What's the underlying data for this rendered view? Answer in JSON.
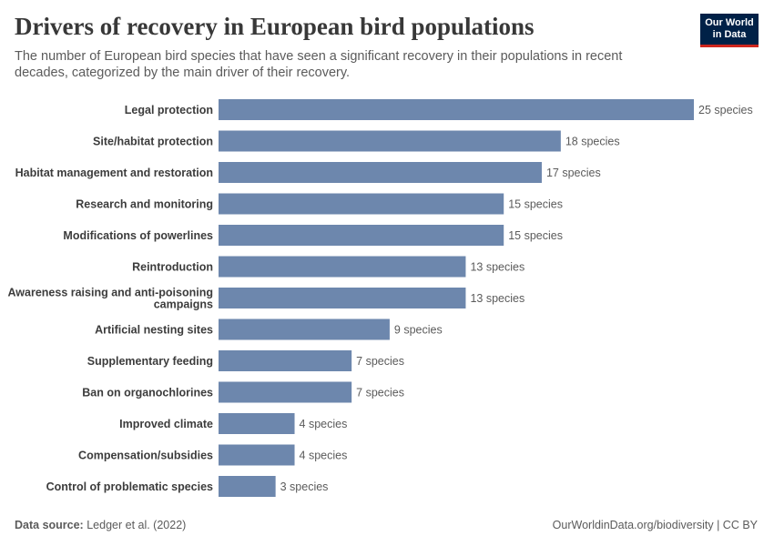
{
  "header": {
    "title": "Drivers of recovery in European bird populations",
    "subtitle": "The number of European bird species that have seen a significant recovery in their populations in recent decades, categorized by the main driver of their recovery."
  },
  "logo": {
    "line1": "Our World",
    "line2": "in Data"
  },
  "footer": {
    "source_label": "Data source:",
    "source_value": "Ledger et al. (2022)",
    "url_license": "OurWorldinData.org/biodiversity | CC BY"
  },
  "colors": {
    "bar": "#6d87ad",
    "label": "#3c3c3c",
    "value": "#5b5b5b"
  },
  "chart_data": {
    "type": "bar",
    "orientation": "horizontal",
    "categories": [
      "Legal protection",
      "Site/habitat protection",
      "Habitat management and restoration",
      "Research and monitoring",
      "Modifications of powerlines",
      "Reintroduction",
      "Awareness raising and anti-poisoning campaigns",
      "Artificial nesting sites",
      "Supplementary feeding",
      "Ban on organochlorines",
      "Improved climate",
      "Compensation/subsidies",
      "Control of problematic species"
    ],
    "values": [
      25,
      18,
      17,
      15,
      15,
      13,
      13,
      9,
      7,
      7,
      4,
      4,
      3
    ],
    "value_labels": [
      "25 species",
      "18 species",
      "17 species",
      "15 species",
      "15 species",
      "13 species",
      "13 species",
      "9 species",
      "7 species",
      "7 species",
      "4 species",
      "4 species",
      "3 species"
    ],
    "xlim": [
      0,
      25
    ]
  }
}
